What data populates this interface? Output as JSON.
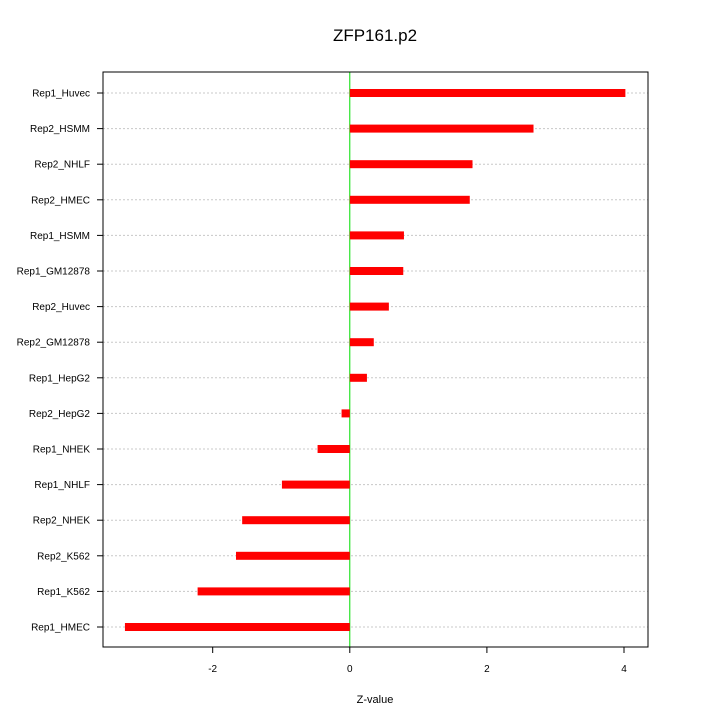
{
  "chart_data": {
    "type": "bar",
    "orientation": "horizontal",
    "title": "ZFP161.p2",
    "xlabel": "Z-value",
    "ylabel": "",
    "xlim": [
      -3.6,
      4.35
    ],
    "xticks": [
      -2,
      0,
      2,
      4
    ],
    "zero_line": true,
    "grid": "horizontal-dotted",
    "categories": [
      "Rep1_Huvec",
      "Rep2_HSMM",
      "Rep2_NHLF",
      "Rep2_HMEC",
      "Rep1_HSMM",
      "Rep1_GM12878",
      "Rep2_Huvec",
      "Rep2_GM12878",
      "Rep1_HepG2",
      "Rep2_HepG2",
      "Rep1_NHEK",
      "Rep1_NHLF",
      "Rep2_NHEK",
      "Rep2_K562",
      "Rep1_K562",
      "Rep1_HMEC"
    ],
    "values": [
      4.02,
      2.68,
      1.79,
      1.75,
      0.79,
      0.78,
      0.57,
      0.35,
      0.25,
      -0.12,
      -0.47,
      -0.99,
      -1.57,
      -1.66,
      -2.22,
      -3.28
    ]
  },
  "colors": {
    "bar": "#ff0000",
    "zero_line": "#00dd00",
    "grid": "#c8c8c8",
    "frame": "#000000"
  }
}
